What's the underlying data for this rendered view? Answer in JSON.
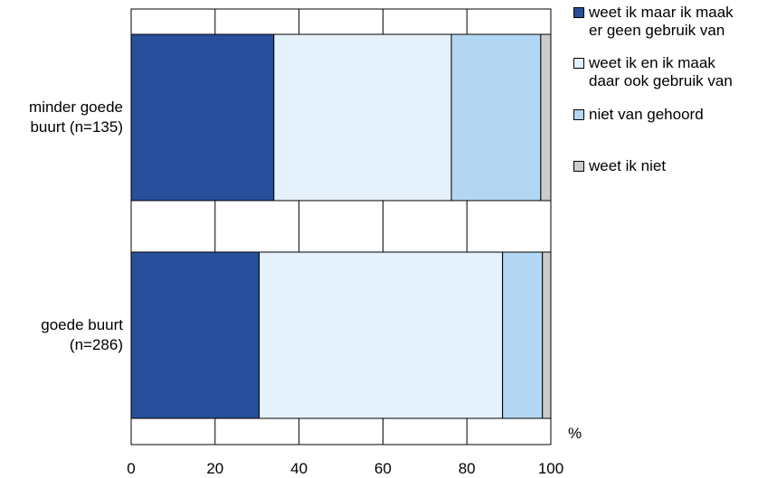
{
  "chart_data": {
    "type": "bar",
    "orientation": "horizontal",
    "stacked": true,
    "categories": [
      "minder goede\nbuurt (n=135)",
      "goede buurt\n(n=286)"
    ],
    "series": [
      {
        "name": "weet ik maar ik maak\ner geen gebruik van",
        "color": "#274f9b",
        "values": [
          34,
          30.5
        ]
      },
      {
        "name": "weet ik en ik maak\ndaar ook gebruik van",
        "color": "#e5f1fb",
        "values": [
          42.3,
          58
        ]
      },
      {
        "name": "niet van gehoord",
        "color": "#b3d7f3",
        "values": [
          21.3,
          9.5
        ]
      },
      {
        "name": "weet ik niet",
        "color": "#cccccc",
        "values": [
          2.4,
          2
        ]
      }
    ],
    "x_ticks": [
      "0",
      "20",
      "40",
      "60",
      "80",
      "100"
    ],
    "xlim": [
      0,
      100
    ],
    "x_unit": "%",
    "grid": true,
    "legend_position": "right"
  }
}
